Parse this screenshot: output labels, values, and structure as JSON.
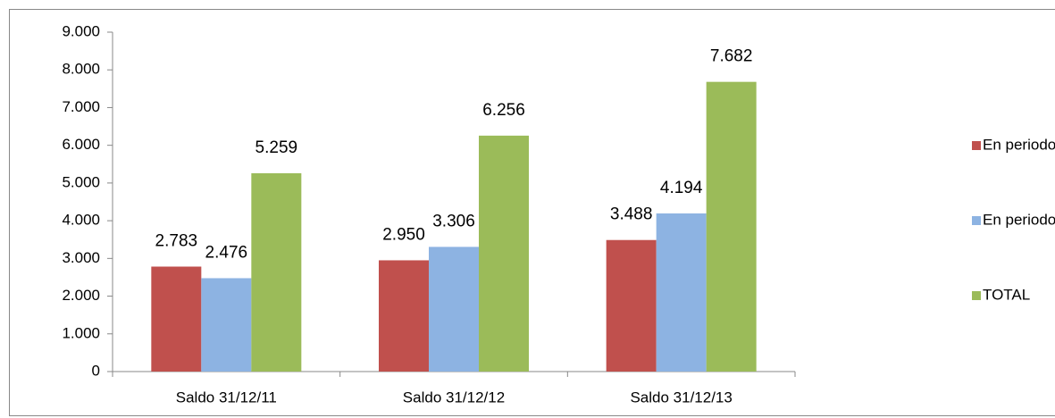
{
  "chart_data": {
    "type": "bar",
    "categories": [
      "Saldo 31/12/11",
      "Saldo 31/12/12",
      "Saldo 31/12/13"
    ],
    "series": [
      {
        "name": "En periodo voluntario",
        "color": "#c0504d",
        "values": [
          2783,
          2950,
          3488
        ],
        "value_labels": [
          "2.783",
          "2.950",
          "3.488"
        ]
      },
      {
        "name": "En periodo ejecutivo",
        "color": "#8db3e2",
        "values": [
          2476,
          3306,
          4194
        ],
        "value_labels": [
          "2.476",
          "3.306",
          "4.194"
        ]
      },
      {
        "name": "TOTAL",
        "color": "#9bbb59",
        "values": [
          5259,
          6256,
          7682
        ],
        "value_labels": [
          "5.259",
          "6.256",
          "7.682"
        ]
      }
    ],
    "ylim": [
      0,
      9000
    ],
    "yticks": [
      0,
      {
        "value": 1000,
        "label": "1.000"
      },
      {
        "value": 2000,
        "label": "2.000"
      },
      {
        "value": 3000,
        "label": "3.000"
      },
      {
        "value": 4000,
        "label": "4.000"
      },
      {
        "value": 5000,
        "label": "5.000"
      },
      {
        "value": 6000,
        "label": "6.000"
      },
      {
        "value": 7000,
        "label": "7.000"
      },
      {
        "value": 8000,
        "label": "8.000"
      },
      {
        "value": 9000,
        "label": "9.000"
      }
    ],
    "legend": "right"
  }
}
